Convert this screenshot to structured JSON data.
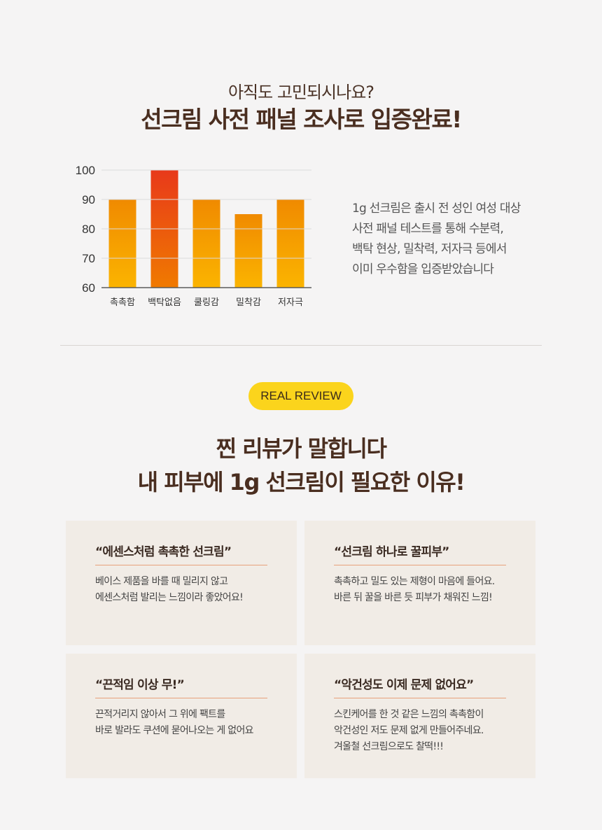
{
  "header": {
    "subtitle": "아직도 고민되시나요?",
    "title": "선크림 사전 패널 조사로 입증완료!"
  },
  "chart_data": {
    "type": "bar",
    "categories": [
      "촉촉함",
      "백탁없음",
      "쿨링감",
      "밀착감",
      "저자극"
    ],
    "values": [
      90,
      100,
      90,
      85,
      90
    ],
    "highlight_index": 1,
    "ylim": [
      60,
      100
    ],
    "yticks": [
      60,
      70,
      80,
      90,
      100
    ],
    "title": "",
    "xlabel": "",
    "ylabel": "",
    "grid": true,
    "colors": {
      "bar_top": "#f08a00",
      "bar_bottom": "#fbb400",
      "highlight_top": "#e8391a",
      "highlight_bottom": "#f07a00",
      "grid": "#c8c8c8"
    }
  },
  "description": {
    "lines": [
      "1g 선크림은 출시 전 성인 여성 대상",
      "사전 패널 테스트를 통해 수분력,",
      "백탁 현상, 밀착력, 저자극 등에서",
      "이미 우수함을 입증받았습니다"
    ]
  },
  "review": {
    "badge": "REAL REVIEW",
    "heading_line1": "찐 리뷰가 말합니다",
    "heading_line2": "내 피부에 1g 선크림이 필요한 이유!",
    "cards": [
      {
        "quote": "“에센스처럼 촉촉한 선크림”",
        "lines": [
          "베이스 제품을 바를 때 밀리지 않고",
          "에센스처럼 발리는 느낌이라 좋았어요!"
        ]
      },
      {
        "quote": "“선크림 하나로 꿀피부”",
        "lines": [
          "촉촉하고 밀도 있는 제형이 마음에 들어요.",
          "바른 뒤 꿀을 바른 듯 피부가 채워진 느낌!"
        ]
      },
      {
        "quote": "“끈적임 이상 무!”",
        "lines": [
          "끈적거리지 않아서 그 위에 팩트를",
          "바로 발라도 쿠션에 묻어나오는 게 없어요"
        ]
      },
      {
        "quote": "“악건성도 이제 문제 없어요”",
        "lines": [
          "스킨케어를 한 것 같은 느낌의 촉촉함이",
          "악건성인 저도 문제 없게 만들어주네요.",
          "겨울철 선크림으로도 찰떡!!!"
        ]
      }
    ]
  },
  "colors": {
    "background": "#f5f4f4",
    "card": "#f1ece6",
    "badge": "#fbd41c",
    "heading": "#4a2e20",
    "card_rule": "#e7a07b"
  }
}
